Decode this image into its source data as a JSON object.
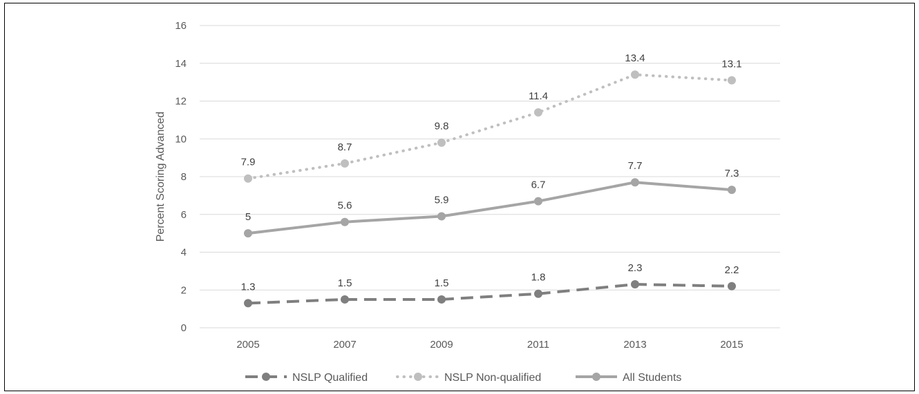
{
  "chart_data": {
    "type": "line",
    "title": "",
    "xlabel": "",
    "ylabel": "Percent Scoring Advanced",
    "categories": [
      "2005",
      "2007",
      "2009",
      "2011",
      "2013",
      "2015"
    ],
    "ylim": [
      0,
      16
    ],
    "yticks": [
      0,
      2,
      4,
      6,
      8,
      10,
      12,
      14,
      16
    ],
    "grid": true,
    "legend_position": "bottom",
    "series": [
      {
        "name": "NSLP Qualified",
        "values": [
          1.3,
          1.5,
          1.5,
          1.8,
          2.3,
          2.2
        ],
        "labels": [
          "1.3",
          "1.5",
          "1.5",
          "1.8",
          "2.3",
          "2.2"
        ],
        "color": "#7f7f7f",
        "line_style": "dashed",
        "marker": "circle"
      },
      {
        "name": "NSLP Non-qualified",
        "values": [
          7.9,
          8.7,
          9.8,
          11.4,
          13.4,
          13.1
        ],
        "labels": [
          "7.9",
          "8.7",
          "9.8",
          "11.4",
          "13.4",
          "13.1"
        ],
        "color": "#bfbfbf",
        "line_style": "dotted",
        "marker": "circle"
      },
      {
        "name": "All Students",
        "values": [
          5,
          5.6,
          5.9,
          6.7,
          7.7,
          7.3
        ],
        "labels": [
          "5",
          "5.6",
          "5.9",
          "6.7",
          "7.7",
          "7.3"
        ],
        "color": "#a5a5a5",
        "line_style": "solid",
        "marker": "circle"
      }
    ]
  }
}
